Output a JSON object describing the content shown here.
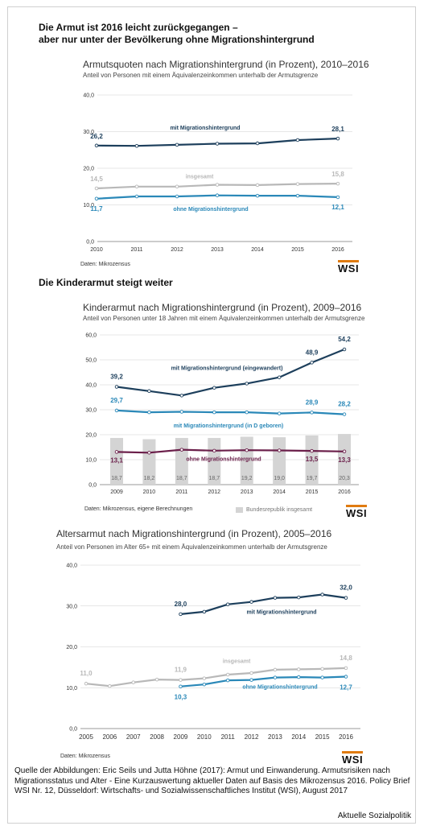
{
  "headlines": {
    "main_line1": "Die Armut ist 2016 leicht zurückgegangen –",
    "main_line2": "aber nur unter der Bevölkerung ohne Migrationshintergrund",
    "kinder": "Die Kinderarmut steigt weiter"
  },
  "colors": {
    "dark_blue": "#1d3f5c",
    "light_blue": "#2a88b8",
    "gray_line": "#b8b8b8",
    "purple": "#6b1f4a",
    "bar_gray": "#d4d4d4",
    "wsi_orange": "#e07b10"
  },
  "chart_data": [
    {
      "type": "line",
      "title": "Armutsquoten nach Migrationshintergrund (in Prozent), 2010–2016",
      "subtitle": "Anteil von Personen mit einem Äquivalenzeinkommen unterhalb der Armutsgrenze",
      "source": "Daten: Mikrozensus",
      "logo": "WSI",
      "x": [
        "2010",
        "2011",
        "2012",
        "2013",
        "2014",
        "2015",
        "2016"
      ],
      "ylim": [
        0,
        40
      ],
      "yticks": [
        "0,0",
        "10,0",
        "20,0",
        "30,0",
        "40,0"
      ],
      "series": [
        {
          "name": "mit Migrationshintergrund",
          "color": "#1d3f5c",
          "values": [
            26.2,
            26.1,
            26.4,
            26.7,
            26.8,
            27.7,
            28.1
          ],
          "first_label": "26,2",
          "last_label": "28,1"
        },
        {
          "name": "insgesamt",
          "color": "#b8b8b8",
          "values": [
            14.5,
            15.0,
            15.0,
            15.5,
            15.4,
            15.7,
            15.8
          ],
          "first_label": "14,5",
          "last_label": "15,8"
        },
        {
          "name": "ohne Migrationshintergrund",
          "color": "#2a88b8",
          "values": [
            11.7,
            12.3,
            12.3,
            12.6,
            12.5,
            12.5,
            12.1
          ],
          "first_label": "11,7",
          "last_label": "12,1"
        }
      ]
    },
    {
      "type": "line",
      "title": "Kinderarmut nach Migrationshintergrund (in Prozent), 2009–2016",
      "subtitle": "Anteil von Personen unter 18 Jahren mit einem Äquivalenzeinkommen unterhalb der Armutsgrenze",
      "source": "Daten: Mikrozensus, eigene Berechnungen",
      "legend_bar": "Bundesrepublik insgesamt",
      "logo": "WSI",
      "x": [
        "2009",
        "2010",
        "2011",
        "2012",
        "2013",
        "2014",
        "2015",
        "2016"
      ],
      "ylim": [
        0,
        60
      ],
      "yticks": [
        "0,0",
        "10,0",
        "20,0",
        "30,0",
        "40,0",
        "50,0",
        "60,0"
      ],
      "bars": {
        "name": "Bundesrepublik insgesamt",
        "values": [
          18.7,
          18.2,
          18.7,
          18.7,
          19.2,
          19.0,
          19.7,
          20.3
        ],
        "labels": [
          "18,7",
          "18,2",
          "18,7",
          "18,7",
          "19,2",
          "19,0",
          "19,7",
          "20,3"
        ]
      },
      "series": [
        {
          "name": "mit Migrationshintergrund (eingewandert)",
          "color": "#1d3f5c",
          "values": [
            39.2,
            37.5,
            35.7,
            38.8,
            40.5,
            43.0,
            48.9,
            54.2
          ],
          "point_labels": {
            "0": "39,2",
            "6": "48,9",
            "7": "54,2"
          }
        },
        {
          "name": "mit Migrationshintergrund (in D geboren)",
          "color": "#2a88b8",
          "values": [
            29.7,
            29.0,
            29.2,
            29.0,
            29.0,
            28.5,
            28.9,
            28.2
          ],
          "point_labels": {
            "0": "29,7",
            "6": "28,9",
            "7": "28,2"
          }
        },
        {
          "name": "ohne Migrationshintergrund",
          "color": "#6b1f4a",
          "values": [
            13.1,
            12.8,
            14.0,
            13.6,
            13.8,
            13.7,
            13.5,
            13.3
          ],
          "point_labels": {
            "0": "13,1",
            "6": "13,5",
            "7": "13,3"
          }
        }
      ]
    },
    {
      "type": "line",
      "title": "Altersarmut nach Migrationshintergrund (in Prozent), 2005–2016",
      "subtitle": "Anteil von Personen im Alter 65+ mit einem Äquivalenzeinkommen unterhalb der Armutsgrenze",
      "source": "Daten: Mikrozensus",
      "logo": "WSI",
      "x": [
        "2005",
        "2006",
        "2007",
        "2008",
        "2009",
        "2010",
        "2011",
        "2012",
        "2013",
        "2014",
        "2015",
        "2016"
      ],
      "ylim": [
        0,
        40
      ],
      "yticks": [
        "0,0",
        "10,0",
        "20,0",
        "30,0",
        "40,0"
      ],
      "series": [
        {
          "name": "mit Migrationshintergrund",
          "color": "#1d3f5c",
          "values": [
            null,
            null,
            null,
            null,
            28.0,
            28.6,
            30.4,
            31.0,
            32.0,
            32.1,
            32.8,
            32.0
          ],
          "point_labels": {
            "4": "28,0",
            "11": "32,0"
          }
        },
        {
          "name": "insgesamt",
          "color": "#b8b8b8",
          "values": [
            11.0,
            10.4,
            11.3,
            12.0,
            11.9,
            12.3,
            13.2,
            13.6,
            14.4,
            14.5,
            14.6,
            14.8
          ],
          "point_labels": {
            "0": "11,0",
            "4": "11,9",
            "11": "14,8"
          }
        },
        {
          "name": "ohne Migrationshintergrund",
          "color": "#2a88b8",
          "values": [
            null,
            null,
            null,
            null,
            10.3,
            10.8,
            11.8,
            11.9,
            12.5,
            12.6,
            12.5,
            12.7
          ],
          "point_labels": {
            "4": "10,3",
            "11": "12,7"
          }
        }
      ]
    }
  ],
  "footer": {
    "citation": "Quelle der Abbildungen: Eric Seils und Jutta Höhne (2017): Armut und Einwanderung. Armutsrisiken nach Migrationsstatus und Alter - Eine Kurzauswertung aktueller Daten auf Basis des Mikrozensus 2016. Policy Brief WSI Nr. 12, Düsseldorf: Wirtschafts- und Sozialwissenschaftliches Institut (WSI), August 2017",
    "credit": "Aktuelle Sozialpolitik"
  }
}
